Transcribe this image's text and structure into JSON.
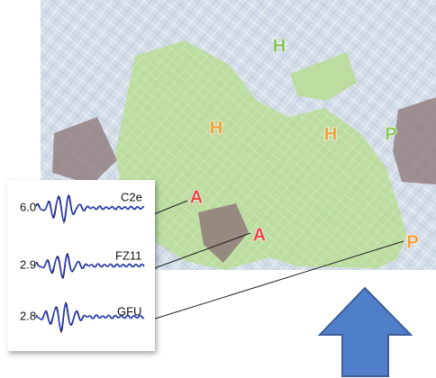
{
  "markers": [
    {
      "label": "H"
    },
    {
      "label": "H"
    },
    {
      "label": "H"
    },
    {
      "label": "P"
    },
    {
      "label": "P"
    },
    {
      "label": "A"
    },
    {
      "label": "A"
    }
  ],
  "traces": [
    {
      "amplitude": "6.0",
      "station": "C2e"
    },
    {
      "amplitude": "2.9",
      "station": "FZ11"
    },
    {
      "amplitude": "2.8",
      "station": "GFU"
    }
  ]
}
